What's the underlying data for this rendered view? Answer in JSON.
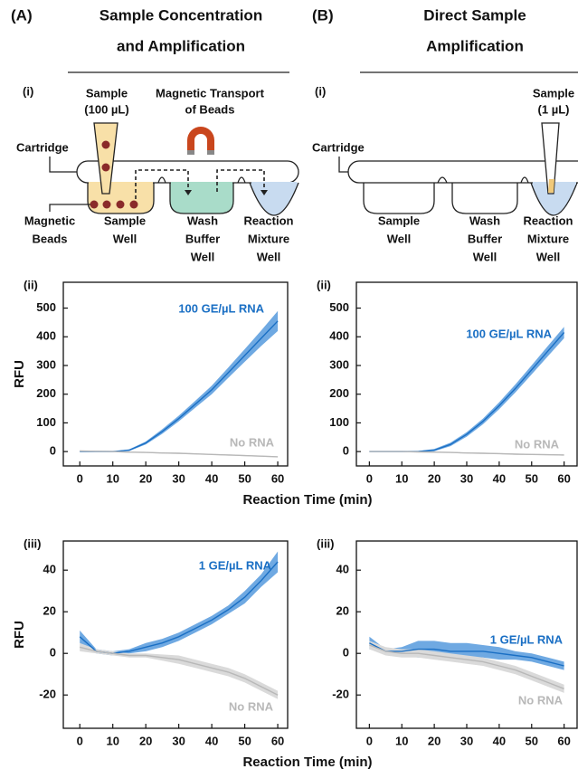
{
  "header": {
    "panels": [
      {
        "label": "(A)",
        "title": [
          "Sample Concentration",
          "and Amplification"
        ]
      },
      {
        "label": "(B)",
        "title": [
          "Direct Sample",
          "Amplification"
        ]
      }
    ]
  },
  "diagrams": [
    {
      "panel_label": "(i)",
      "sample": [
        "Sample",
        "(100 µL)"
      ],
      "transport": [
        "Magnetic Transport",
        "of Beads"
      ],
      "cartridge": "Cartridge",
      "beads": [
        "Magnetic",
        "Beads"
      ],
      "wells": [
        [
          "Sample",
          "Well"
        ],
        [
          "Wash",
          "Buffer",
          "Well"
        ],
        [
          "Reaction",
          "Mixture",
          "Well"
        ]
      ]
    },
    {
      "panel_label": "(i)",
      "sample": [
        "Sample",
        "(1 µL)"
      ],
      "cartridge": "Cartridge",
      "wells": [
        [
          "Sample",
          "Well"
        ],
        [
          "Wash",
          "Buffer",
          "Well"
        ],
        [
          "Reaction",
          "Mixture",
          "Well"
        ]
      ]
    }
  ],
  "chart_data": [
    {
      "type": "line",
      "panel_label": "(ii)",
      "ylabel": "RFU",
      "xlabel": "Reaction Time (min)",
      "x": [
        0,
        5,
        10,
        15,
        20,
        25,
        30,
        35,
        40,
        45,
        50,
        55,
        60
      ],
      "xlim": [
        -5,
        63
      ],
      "ylim": [
        -50,
        590
      ],
      "xticks": [
        0,
        10,
        20,
        30,
        40,
        50,
        60
      ],
      "yticks": [
        0,
        100,
        200,
        300,
        400,
        500
      ],
      "series": [
        {
          "name": "100 GE/µL RNA",
          "color": "#1a6fc4",
          "band_color": "#6fa9e2",
          "values": [
            0,
            0,
            0,
            5,
            30,
            70,
            115,
            165,
            215,
            275,
            335,
            395,
            455
          ],
          "error": [
            0,
            0,
            0,
            3,
            5,
            8,
            10,
            12,
            15,
            18,
            22,
            27,
            35
          ]
        },
        {
          "name": "No RNA",
          "color": "#b8b8b8",
          "band_color": "#dadada",
          "values": [
            2,
            1,
            0,
            -2,
            -3,
            -5,
            -6,
            -8,
            -10,
            -12,
            -14,
            -16,
            -18
          ],
          "error": [
            2,
            2,
            2,
            2,
            2,
            2,
            2,
            2,
            2,
            2,
            2,
            2,
            2
          ]
        }
      ]
    },
    {
      "type": "line",
      "panel_label": "(ii)",
      "x": [
        0,
        5,
        10,
        15,
        20,
        25,
        30,
        35,
        40,
        45,
        50,
        55,
        60
      ],
      "xlim": [
        -4,
        64
      ],
      "ylim": [
        -50,
        590
      ],
      "xticks": [
        0,
        10,
        20,
        30,
        40,
        50,
        60
      ],
      "yticks": [
        0,
        100,
        200,
        300,
        400,
        500
      ],
      "series": [
        {
          "name": "100 GE/µL RNA",
          "color": "#1a6fc4",
          "band_color": "#6fa9e2",
          "values": [
            0,
            0,
            0,
            0,
            5,
            25,
            60,
            105,
            160,
            220,
            285,
            350,
            415
          ],
          "error": [
            0,
            0,
            0,
            2,
            4,
            6,
            8,
            10,
            12,
            14,
            16,
            18,
            20
          ]
        },
        {
          "name": "No RNA",
          "color": "#b8b8b8",
          "band_color": "#dadada",
          "values": [
            0,
            0,
            0,
            -1,
            -2,
            -3,
            -5,
            -6,
            -7,
            -9,
            -10,
            -11,
            -12
          ],
          "error": [
            2,
            2,
            2,
            2,
            2,
            2,
            2,
            2,
            2,
            2,
            2,
            2,
            2
          ]
        }
      ]
    },
    {
      "type": "line",
      "panel_label": "(iii)",
      "ylabel": "RFU",
      "xlabel": "Reaction Time (min)",
      "x": [
        0,
        5,
        10,
        15,
        20,
        25,
        30,
        35,
        40,
        45,
        50,
        55,
        60
      ],
      "xlim": [
        -5,
        63
      ],
      "ylim": [
        -36,
        54
      ],
      "xticks": [
        0,
        10,
        20,
        30,
        40,
        50,
        60
      ],
      "yticks": [
        -20,
        0,
        20,
        40
      ],
      "series": [
        {
          "name": "1 GE/µL RNA",
          "color": "#1a6fc4",
          "band_color": "#6fa9e2",
          "values": [
            8,
            1,
            0,
            1,
            3,
            5,
            8,
            12,
            16,
            21,
            27,
            35,
            44
          ],
          "error": [
            3,
            1,
            1,
            1,
            2,
            2,
            2,
            2,
            2,
            2,
            3,
            3,
            5
          ]
        },
        {
          "name": "No RNA",
          "color": "#b8b8b8",
          "band_color": "#dadada",
          "values": [
            3,
            1,
            0,
            -1,
            -1,
            -2,
            -3,
            -5,
            -7,
            -9,
            -12,
            -16,
            -20
          ],
          "error": [
            2,
            1,
            1,
            1,
            1,
            1.5,
            2,
            2,
            2,
            2,
            2,
            2,
            2
          ]
        }
      ]
    },
    {
      "type": "line",
      "panel_label": "(iii)",
      "x": [
        0,
        5,
        10,
        15,
        20,
        25,
        30,
        35,
        40,
        45,
        50,
        55,
        60
      ],
      "xlim": [
        -4,
        64
      ],
      "ylim": [
        -36,
        54
      ],
      "xticks": [
        0,
        10,
        20,
        30,
        40,
        50,
        60
      ],
      "yticks": [
        -20,
        0,
        20,
        40
      ],
      "series": [
        {
          "name": "1 GE/µL RNA",
          "color": "#1a6fc4",
          "band_color": "#6fa9e2",
          "values": [
            5,
            1,
            1,
            2,
            2,
            1,
            1,
            1,
            0,
            -1,
            -2,
            -4,
            -6
          ],
          "error": [
            3,
            1,
            2,
            4,
            4,
            4,
            4,
            3,
            3,
            2,
            2,
            2,
            2
          ]
        },
        {
          "name": "No RNA",
          "color": "#b8b8b8",
          "band_color": "#dadada",
          "values": [
            4,
            1,
            0,
            0,
            -1,
            -2,
            -3,
            -4,
            -6,
            -8,
            -11,
            -14,
            -17
          ],
          "error": [
            2,
            2,
            2,
            2,
            2,
            2,
            2,
            2,
            2,
            2,
            2,
            2,
            2
          ]
        }
      ]
    }
  ]
}
